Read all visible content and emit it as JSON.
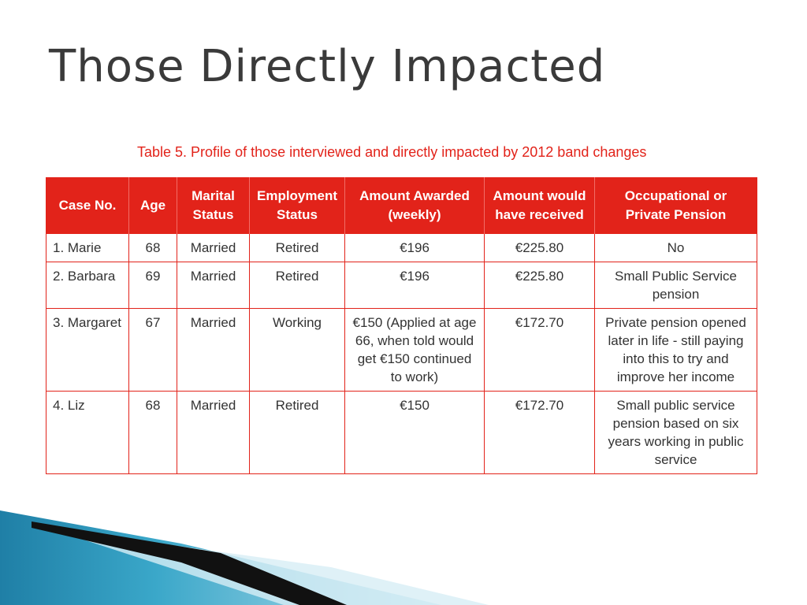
{
  "slide": {
    "title": "Those Directly Impacted"
  },
  "table": {
    "caption": "Table 5. Profile of those interviewed and directly impacted by 2012 band changes",
    "headers": [
      [
        "Case No."
      ],
      [
        "Age"
      ],
      [
        "Marital",
        "Status"
      ],
      [
        "Employment",
        "Status"
      ],
      [
        "Amount Awarded",
        "(weekly)"
      ],
      [
        "Amount would",
        "have received"
      ],
      [
        "Occupational or",
        "Private Pension"
      ]
    ],
    "rows": [
      {
        "case": "1. Marie",
        "age": "68",
        "marital": "Married",
        "employment": "Retired",
        "awarded": [
          "€196"
        ],
        "would_have": "€225.80",
        "pension": [
          "No"
        ]
      },
      {
        "case": "2. Barbara",
        "age": "69",
        "marital": "Married",
        "employment": "Retired",
        "awarded": [
          "€196"
        ],
        "would_have": "€225.80",
        "pension": [
          "Small Public Service",
          "pension"
        ]
      },
      {
        "case": "3. Margaret",
        "age": "67",
        "marital": "Married",
        "employment": "Working",
        "awarded": [
          "€150 (Applied at age",
          "66, when told would",
          "get €150 continued",
          "to work)"
        ],
        "would_have": "€172.70",
        "pension": [
          "Private pension opened",
          "later in life - still paying",
          "into this to try and",
          "improve her income"
        ]
      },
      {
        "case": "4. Liz",
        "age": "68",
        "marital": "Married",
        "employment": "Retired",
        "awarded": [
          "€150"
        ],
        "would_have": "€172.70",
        "pension": [
          "Small public service",
          "pension based on six",
          "years working in public",
          "service"
        ]
      }
    ]
  },
  "colors": {
    "accent_red": "#e2231a",
    "title_gray": "#3a3a3a",
    "decor_teal": "#3aa7c9",
    "decor_dark": "#111111"
  }
}
